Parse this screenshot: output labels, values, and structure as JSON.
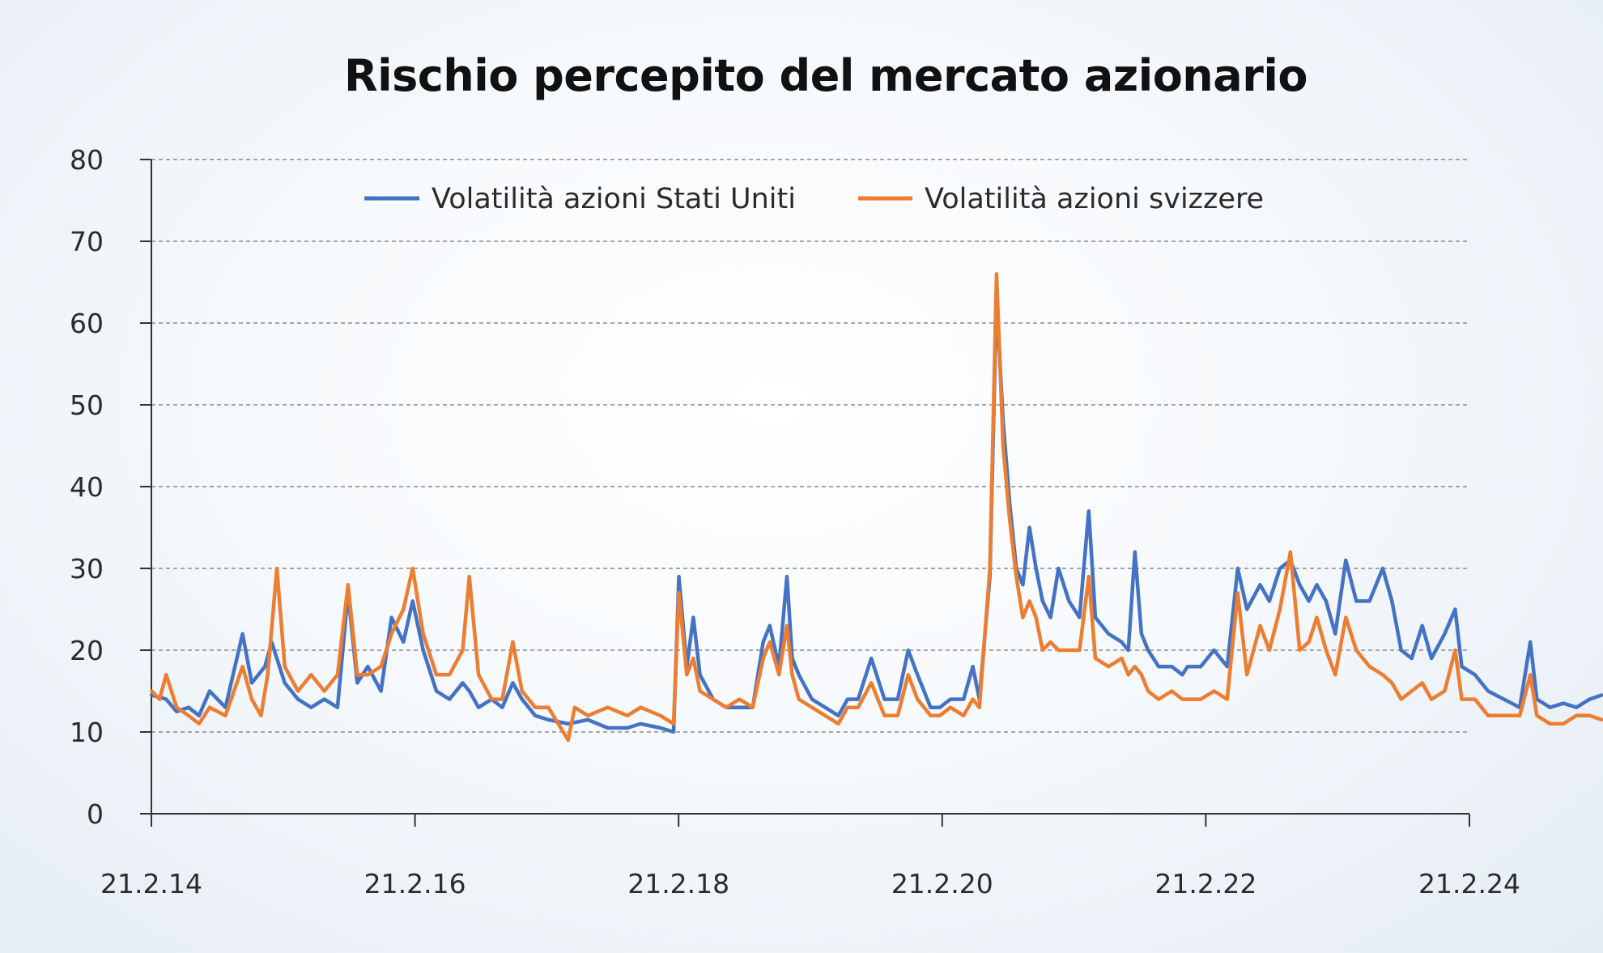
{
  "chart_data": {
    "type": "line",
    "title": "Rischio percepito del mercato azionario",
    "xlabel": "",
    "ylabel": "",
    "ylim": [
      0,
      80
    ],
    "yticks": [
      "0",
      "10",
      "20",
      "30",
      "40",
      "50",
      "60",
      "70",
      "80"
    ],
    "xticks": [
      "21.2.14",
      "21.2.16",
      "21.2.18",
      "21.2.20",
      "21.2.22",
      "21.2.24"
    ],
    "xlim": [
      "21.2.14",
      "21.2.24"
    ],
    "grid": "horizontal dashed",
    "legend_position": "top-center",
    "colors": {
      "us": "#4472c4",
      "ch": "#ed7d31",
      "grid": "#8a8a8a",
      "axis": "#333333"
    },
    "series": [
      {
        "name": "Volatilità azioni Stati Uniti",
        "color": "#4472c4",
        "points": [
          [
            2014.14,
            14.5
          ],
          [
            2014.25,
            14
          ],
          [
            2014.33,
            12.5
          ],
          [
            2014.42,
            13
          ],
          [
            2014.5,
            12
          ],
          [
            2014.58,
            15
          ],
          [
            2014.7,
            13
          ],
          [
            2014.83,
            22
          ],
          [
            2014.9,
            16
          ],
          [
            2014.95,
            17
          ],
          [
            2015.0,
            18
          ],
          [
            2015.05,
            21
          ],
          [
            2015.15,
            16
          ],
          [
            2015.25,
            14
          ],
          [
            2015.35,
            13
          ],
          [
            2015.45,
            14
          ],
          [
            2015.55,
            13
          ],
          [
            2015.63,
            27
          ],
          [
            2015.7,
            16
          ],
          [
            2015.78,
            18
          ],
          [
            2015.88,
            15
          ],
          [
            2015.96,
            24
          ],
          [
            2016.05,
            21
          ],
          [
            2016.12,
            26
          ],
          [
            2016.2,
            20
          ],
          [
            2016.3,
            15
          ],
          [
            2016.4,
            14
          ],
          [
            2016.5,
            16
          ],
          [
            2016.55,
            15
          ],
          [
            2016.62,
            13
          ],
          [
            2016.72,
            14
          ],
          [
            2016.8,
            13
          ],
          [
            2016.88,
            16
          ],
          [
            2016.95,
            14
          ],
          [
            2017.05,
            12
          ],
          [
            2017.15,
            11.5
          ],
          [
            2017.3,
            11
          ],
          [
            2017.45,
            11.5
          ],
          [
            2017.6,
            10.5
          ],
          [
            2017.75,
            10.5
          ],
          [
            2017.85,
            11
          ],
          [
            2018.0,
            10.5
          ],
          [
            2018.1,
            10
          ],
          [
            2018.14,
            29
          ],
          [
            2018.2,
            18
          ],
          [
            2018.25,
            24
          ],
          [
            2018.3,
            17
          ],
          [
            2018.4,
            14
          ],
          [
            2018.5,
            13
          ],
          [
            2018.6,
            13
          ],
          [
            2018.7,
            13
          ],
          [
            2018.78,
            21
          ],
          [
            2018.83,
            23
          ],
          [
            2018.9,
            18
          ],
          [
            2018.96,
            29
          ],
          [
            2019.0,
            19
          ],
          [
            2019.05,
            17
          ],
          [
            2019.15,
            14
          ],
          [
            2019.25,
            13
          ],
          [
            2019.35,
            12
          ],
          [
            2019.42,
            14
          ],
          [
            2019.5,
            14
          ],
          [
            2019.6,
            19
          ],
          [
            2019.7,
            14
          ],
          [
            2019.8,
            14
          ],
          [
            2019.88,
            20
          ],
          [
            2019.95,
            17
          ],
          [
            2020.05,
            13
          ],
          [
            2020.12,
            13
          ],
          [
            2020.2,
            14
          ],
          [
            2020.3,
            14
          ],
          [
            2020.37,
            18
          ],
          [
            2020.42,
            14
          ],
          [
            2020.5,
            29
          ],
          [
            2020.55,
            63
          ],
          [
            2020.6,
            48
          ],
          [
            2020.65,
            38
          ],
          [
            2020.7,
            30
          ],
          [
            2020.75,
            28
          ],
          [
            2020.8,
            35
          ],
          [
            2020.85,
            30
          ],
          [
            2020.9,
            26
          ],
          [
            2020.96,
            24
          ],
          [
            2021.02,
            30
          ],
          [
            2021.1,
            26
          ],
          [
            2021.18,
            24
          ],
          [
            2021.25,
            37
          ],
          [
            2021.3,
            24
          ],
          [
            2021.4,
            22
          ],
          [
            2021.5,
            21
          ],
          [
            2021.55,
            20
          ],
          [
            2021.6,
            32
          ],
          [
            2021.65,
            22
          ],
          [
            2021.7,
            20
          ],
          [
            2021.78,
            18
          ],
          [
            2021.88,
            18
          ],
          [
            2021.96,
            17
          ],
          [
            2022.0,
            18
          ],
          [
            2022.1,
            18
          ],
          [
            2022.2,
            20
          ],
          [
            2022.3,
            18
          ],
          [
            2022.38,
            30
          ],
          [
            2022.45,
            25
          ],
          [
            2022.55,
            28
          ],
          [
            2022.62,
            26
          ],
          [
            2022.7,
            30
          ],
          [
            2022.78,
            31
          ],
          [
            2022.85,
            28
          ],
          [
            2022.92,
            26
          ],
          [
            2022.98,
            28
          ],
          [
            2023.05,
            26
          ],
          [
            2023.12,
            22
          ],
          [
            2023.2,
            31
          ],
          [
            2023.28,
            26
          ],
          [
            2023.38,
            26
          ],
          [
            2023.48,
            30
          ],
          [
            2023.55,
            26
          ],
          [
            2023.62,
            20
          ],
          [
            2023.7,
            19
          ],
          [
            2023.78,
            23
          ],
          [
            2023.85,
            19
          ],
          [
            2023.95,
            22
          ],
          [
            2024.03,
            25
          ],
          [
            2024.08,
            18
          ],
          [
            2024.18,
            17
          ],
          [
            2024.28,
            15
          ],
          [
            2024.4,
            14
          ],
          [
            2024.52,
            13
          ],
          [
            2024.6,
            21
          ],
          [
            2024.65,
            14
          ],
          [
            2024.75,
            13
          ],
          [
            2024.85,
            13.5
          ],
          [
            2024.95,
            13
          ],
          [
            2025.05,
            14
          ],
          [
            2025.14,
            14.5
          ]
        ]
      },
      {
        "name": "Volatilità azioni svizzere",
        "color": "#ed7d31",
        "points": [
          [
            2014.14,
            15
          ],
          [
            2014.2,
            14
          ],
          [
            2014.25,
            17
          ],
          [
            2014.33,
            13
          ],
          [
            2014.42,
            12
          ],
          [
            2014.5,
            11
          ],
          [
            2014.58,
            13
          ],
          [
            2014.7,
            12
          ],
          [
            2014.83,
            18
          ],
          [
            2014.9,
            14
          ],
          [
            2014.97,
            12
          ],
          [
            2015.02,
            17
          ],
          [
            2015.09,
            30
          ],
          [
            2015.15,
            18
          ],
          [
            2015.25,
            15
          ],
          [
            2015.35,
            17
          ],
          [
            2015.45,
            15
          ],
          [
            2015.55,
            17
          ],
          [
            2015.63,
            28
          ],
          [
            2015.7,
            17
          ],
          [
            2015.78,
            17
          ],
          [
            2015.88,
            18
          ],
          [
            2015.96,
            22
          ],
          [
            2016.05,
            25
          ],
          [
            2016.12,
            30
          ],
          [
            2016.2,
            22
          ],
          [
            2016.3,
            17
          ],
          [
            2016.4,
            17
          ],
          [
            2016.5,
            20
          ],
          [
            2016.55,
            29
          ],
          [
            2016.62,
            17
          ],
          [
            2016.72,
            14
          ],
          [
            2016.8,
            14
          ],
          [
            2016.88,
            21
          ],
          [
            2016.95,
            15
          ],
          [
            2017.05,
            13
          ],
          [
            2017.15,
            13
          ],
          [
            2017.3,
            9
          ],
          [
            2017.35,
            13
          ],
          [
            2017.45,
            12
          ],
          [
            2017.6,
            13
          ],
          [
            2017.75,
            12
          ],
          [
            2017.85,
            13
          ],
          [
            2018.0,
            12
          ],
          [
            2018.1,
            11
          ],
          [
            2018.14,
            27
          ],
          [
            2018.2,
            17
          ],
          [
            2018.25,
            19
          ],
          [
            2018.3,
            15
          ],
          [
            2018.4,
            14
          ],
          [
            2018.5,
            13
          ],
          [
            2018.6,
            14
          ],
          [
            2018.7,
            13
          ],
          [
            2018.78,
            19
          ],
          [
            2018.83,
            21
          ],
          [
            2018.9,
            17
          ],
          [
            2018.96,
            23
          ],
          [
            2019.0,
            17
          ],
          [
            2019.05,
            14
          ],
          [
            2019.15,
            13
          ],
          [
            2019.25,
            12
          ],
          [
            2019.35,
            11
          ],
          [
            2019.42,
            13
          ],
          [
            2019.5,
            13
          ],
          [
            2019.6,
            16
          ],
          [
            2019.7,
            12
          ],
          [
            2019.8,
            12
          ],
          [
            2019.88,
            17
          ],
          [
            2019.95,
            14
          ],
          [
            2020.05,
            12
          ],
          [
            2020.12,
            12
          ],
          [
            2020.2,
            13
          ],
          [
            2020.3,
            12
          ],
          [
            2020.37,
            14
          ],
          [
            2020.42,
            13
          ],
          [
            2020.5,
            30
          ],
          [
            2020.55,
            66
          ],
          [
            2020.6,
            45
          ],
          [
            2020.65,
            36
          ],
          [
            2020.7,
            29
          ],
          [
            2020.75,
            24
          ],
          [
            2020.8,
            26
          ],
          [
            2020.85,
            24
          ],
          [
            2020.9,
            20
          ],
          [
            2020.96,
            21
          ],
          [
            2021.02,
            20
          ],
          [
            2021.1,
            20
          ],
          [
            2021.18,
            20
          ],
          [
            2021.25,
            29
          ],
          [
            2021.3,
            19
          ],
          [
            2021.4,
            18
          ],
          [
            2021.5,
            19
          ],
          [
            2021.55,
            17
          ],
          [
            2021.6,
            18
          ],
          [
            2021.65,
            17
          ],
          [
            2021.7,
            15
          ],
          [
            2021.78,
            14
          ],
          [
            2021.88,
            15
          ],
          [
            2021.96,
            14
          ],
          [
            2022.0,
            14
          ],
          [
            2022.1,
            14
          ],
          [
            2022.2,
            15
          ],
          [
            2022.3,
            14
          ],
          [
            2022.38,
            27
          ],
          [
            2022.45,
            17
          ],
          [
            2022.55,
            23
          ],
          [
            2022.62,
            20
          ],
          [
            2022.7,
            25
          ],
          [
            2022.78,
            32
          ],
          [
            2022.85,
            20
          ],
          [
            2022.92,
            21
          ],
          [
            2022.98,
            24
          ],
          [
            2023.05,
            20
          ],
          [
            2023.12,
            17
          ],
          [
            2023.2,
            24
          ],
          [
            2023.28,
            20
          ],
          [
            2023.38,
            18
          ],
          [
            2023.48,
            17
          ],
          [
            2023.55,
            16
          ],
          [
            2023.62,
            14
          ],
          [
            2023.7,
            15
          ],
          [
            2023.78,
            16
          ],
          [
            2023.85,
            14
          ],
          [
            2023.95,
            15
          ],
          [
            2024.03,
            20
          ],
          [
            2024.08,
            14
          ],
          [
            2024.18,
            14
          ],
          [
            2024.28,
            12
          ],
          [
            2024.4,
            12
          ],
          [
            2024.52,
            12
          ],
          [
            2024.6,
            17
          ],
          [
            2024.65,
            12
          ],
          [
            2024.75,
            11
          ],
          [
            2024.85,
            11
          ],
          [
            2024.95,
            12
          ],
          [
            2025.05,
            12
          ],
          [
            2025.14,
            11.5
          ]
        ]
      }
    ]
  }
}
